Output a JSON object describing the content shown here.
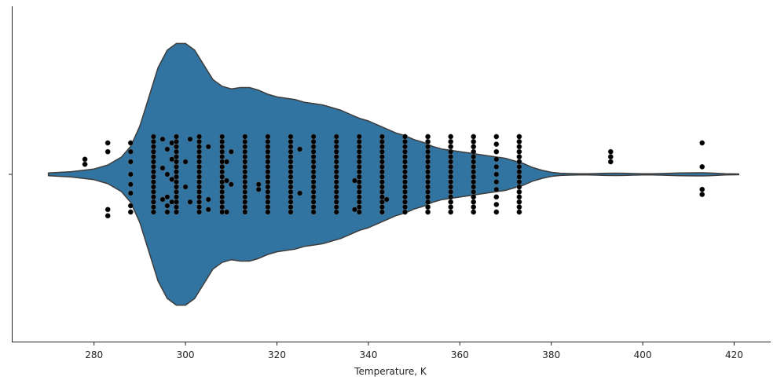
{
  "chart_data": {
    "type": "violin",
    "title": "",
    "xlabel": "Temperature, K",
    "ylabel": "",
    "xlim": [
      262,
      428
    ],
    "xticks": [
      280,
      300,
      320,
      340,
      360,
      380,
      400,
      420
    ],
    "xtick_labels": [
      "280",
      "300",
      "320",
      "340",
      "360",
      "380",
      "400",
      "420"
    ],
    "orientation": "horizontal",
    "grid": false,
    "violin_color": "#3274a1",
    "outline_color": "#3d3d3d",
    "point_color": "#000000",
    "violin_profile": {
      "temperature": [
        270,
        275,
        280,
        283,
        286,
        288,
        290,
        292,
        294,
        296,
        298,
        300,
        302,
        304,
        306,
        308,
        310,
        312,
        314,
        316,
        318,
        320,
        322,
        324,
        326,
        328,
        330,
        332,
        334,
        336,
        338,
        340,
        342,
        344,
        346,
        348,
        350,
        352,
        354,
        356,
        358,
        360,
        362,
        364,
        366,
        368,
        370,
        372,
        374,
        376,
        378,
        380,
        382,
        384,
        386,
        388,
        390,
        392,
        394,
        396,
        398,
        400,
        402,
        404,
        406,
        408,
        410,
        412,
        413,
        414,
        416,
        418,
        421
      ],
      "relative_density": [
        0.01,
        0.02,
        0.04,
        0.07,
        0.13,
        0.21,
        0.36,
        0.58,
        0.8,
        0.93,
        0.98,
        0.98,
        0.93,
        0.82,
        0.71,
        0.66,
        0.64,
        0.65,
        0.65,
        0.63,
        0.6,
        0.58,
        0.57,
        0.56,
        0.54,
        0.53,
        0.52,
        0.5,
        0.48,
        0.45,
        0.42,
        0.4,
        0.37,
        0.34,
        0.31,
        0.29,
        0.26,
        0.24,
        0.21,
        0.19,
        0.18,
        0.17,
        0.16,
        0.15,
        0.14,
        0.13,
        0.12,
        0.1,
        0.08,
        0.05,
        0.03,
        0.015,
        0.008,
        0.006,
        0.005,
        0.005,
        0.006,
        0.008,
        0.009,
        0.008,
        0.006,
        0.005,
        0.005,
        0.006,
        0.008,
        0.01,
        0.011,
        0.012,
        0.012,
        0.011,
        0.008,
        0.005,
        0.003
      ]
    },
    "points": [
      {
        "x": 278,
        "offsets": [
          -0.12,
          -0.08
        ]
      },
      {
        "x": 283,
        "offsets": [
          -0.25,
          -0.18,
          0.28,
          0.33
        ]
      },
      {
        "x": 288,
        "offsets": [
          -0.25,
          -0.18,
          -0.1,
          0.0,
          0.08,
          0.15,
          0.25,
          0.3
        ]
      },
      {
        "x": 293,
        "offsets": [
          -0.3,
          -0.26,
          -0.22,
          -0.18,
          -0.14,
          -0.1,
          -0.06,
          -0.02,
          0.02,
          0.06,
          0.1,
          0.14,
          0.18,
          0.22,
          0.26,
          0.3
        ]
      },
      {
        "x": 295,
        "offsets": [
          -0.28,
          -0.05,
          0.2
        ]
      },
      {
        "x": 296,
        "offsets": [
          -0.2,
          0.0,
          0.18,
          0.25,
          0.3
        ]
      },
      {
        "x": 297,
        "offsets": [
          -0.25,
          -0.12,
          0.04,
          0.22
        ]
      },
      {
        "x": 298,
        "offsets": [
          -0.3,
          -0.26,
          -0.22,
          -0.18,
          -0.14,
          -0.1,
          -0.06,
          -0.02,
          0.02,
          0.06,
          0.1,
          0.14,
          0.18,
          0.22,
          0.26,
          0.3
        ]
      },
      {
        "x": 300,
        "offsets": [
          -0.1,
          0.1
        ]
      },
      {
        "x": 301,
        "offsets": [
          -0.28,
          0.22
        ]
      },
      {
        "x": 303,
        "offsets": [
          -0.3,
          -0.26,
          -0.22,
          -0.18,
          -0.14,
          -0.1,
          -0.06,
          -0.02,
          0.02,
          0.06,
          0.1,
          0.14,
          0.18,
          0.22,
          0.26,
          0.3
        ]
      },
      {
        "x": 305,
        "offsets": [
          -0.22,
          0.2,
          0.28
        ]
      },
      {
        "x": 308,
        "offsets": [
          -0.3,
          -0.26,
          -0.22,
          -0.18,
          -0.14,
          -0.1,
          -0.06,
          -0.02,
          0.02,
          0.06,
          0.1,
          0.14,
          0.18,
          0.22,
          0.26,
          0.3
        ]
      },
      {
        "x": 309,
        "offsets": [
          -0.1,
          0.05,
          0.3
        ]
      },
      {
        "x": 310,
        "offsets": [
          -0.18,
          0.08
        ]
      },
      {
        "x": 313,
        "offsets": [
          -0.3,
          -0.26,
          -0.22,
          -0.18,
          -0.14,
          -0.1,
          -0.06,
          -0.02,
          0.02,
          0.06,
          0.1,
          0.14,
          0.18,
          0.22,
          0.26,
          0.3
        ]
      },
      {
        "x": 316,
        "offsets": [
          0.08,
          0.12
        ]
      },
      {
        "x": 318,
        "offsets": [
          -0.3,
          -0.26,
          -0.22,
          -0.18,
          -0.14,
          -0.1,
          -0.06,
          -0.02,
          0.02,
          0.06,
          0.1,
          0.14,
          0.18,
          0.22,
          0.26,
          0.3
        ]
      },
      {
        "x": 323,
        "offsets": [
          -0.3,
          -0.26,
          -0.22,
          -0.18,
          -0.14,
          -0.1,
          -0.06,
          -0.02,
          0.02,
          0.06,
          0.1,
          0.14,
          0.18,
          0.22,
          0.26,
          0.3
        ]
      },
      {
        "x": 325,
        "offsets": [
          -0.2,
          0.15
        ]
      },
      {
        "x": 328,
        "offsets": [
          -0.3,
          -0.26,
          -0.22,
          -0.18,
          -0.14,
          -0.1,
          -0.06,
          -0.02,
          0.02,
          0.06,
          0.1,
          0.14,
          0.18,
          0.22,
          0.26,
          0.3
        ]
      },
      {
        "x": 333,
        "offsets": [
          -0.3,
          -0.26,
          -0.22,
          -0.18,
          -0.14,
          -0.1,
          -0.06,
          -0.02,
          0.02,
          0.06,
          0.1,
          0.14,
          0.18,
          0.22,
          0.26,
          0.3
        ]
      },
      {
        "x": 337,
        "offsets": [
          0.05,
          0.28
        ]
      },
      {
        "x": 338,
        "offsets": [
          -0.3,
          -0.26,
          -0.22,
          -0.18,
          -0.14,
          -0.1,
          -0.06,
          -0.02,
          0.02,
          0.06,
          0.1,
          0.14,
          0.18,
          0.22,
          0.26,
          0.3
        ]
      },
      {
        "x": 343,
        "offsets": [
          -0.3,
          -0.26,
          -0.22,
          -0.18,
          -0.14,
          -0.1,
          -0.06,
          -0.02,
          0.02,
          0.06,
          0.1,
          0.14,
          0.18,
          0.22,
          0.26,
          0.3
        ]
      },
      {
        "x": 344,
        "offsets": [
          0.2
        ]
      },
      {
        "x": 348,
        "offsets": [
          -0.3,
          -0.26,
          -0.22,
          -0.18,
          -0.14,
          -0.1,
          -0.06,
          -0.02,
          0.02,
          0.06,
          0.1,
          0.14,
          0.18,
          0.22,
          0.26,
          0.3
        ]
      },
      {
        "x": 353,
        "offsets": [
          -0.3,
          -0.26,
          -0.22,
          -0.18,
          -0.14,
          -0.1,
          -0.06,
          -0.02,
          0.02,
          0.06,
          0.1,
          0.14,
          0.18,
          0.22,
          0.26,
          0.3
        ]
      },
      {
        "x": 358,
        "offsets": [
          -0.3,
          -0.26,
          -0.22,
          -0.18,
          -0.14,
          -0.1,
          -0.06,
          -0.02,
          0.02,
          0.06,
          0.1,
          0.14,
          0.18,
          0.22,
          0.26,
          0.3
        ]
      },
      {
        "x": 363,
        "offsets": [
          -0.3,
          -0.26,
          -0.22,
          -0.18,
          -0.14,
          -0.1,
          -0.06,
          -0.02,
          0.02,
          0.06,
          0.1,
          0.14,
          0.18,
          0.22,
          0.26,
          0.3
        ]
      },
      {
        "x": 368,
        "offsets": [
          -0.3,
          -0.24,
          -0.18,
          -0.12,
          -0.06,
          0.0,
          0.06,
          0.12,
          0.18,
          0.24,
          0.3
        ]
      },
      {
        "x": 373,
        "offsets": [
          -0.3,
          -0.26,
          -0.22,
          -0.18,
          -0.14,
          -0.1,
          -0.06,
          -0.02,
          0.02,
          0.06,
          0.1,
          0.14,
          0.18,
          0.22,
          0.26,
          0.3
        ]
      },
      {
        "x": 393,
        "offsets": [
          -0.18,
          -0.14,
          -0.1
        ]
      },
      {
        "x": 413,
        "offsets": [
          -0.25,
          -0.06,
          0.12,
          0.16
        ]
      }
    ]
  }
}
